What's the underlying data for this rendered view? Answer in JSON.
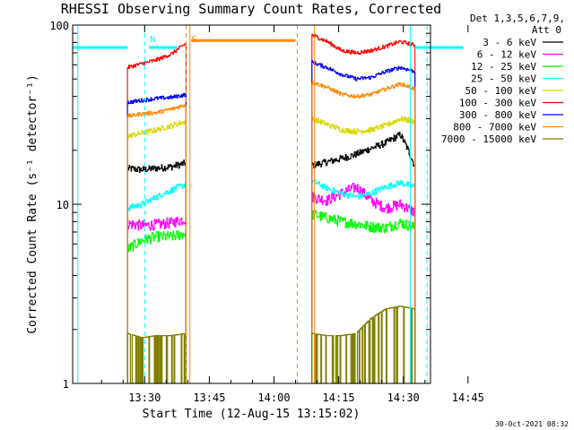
{
  "chart_data": {
    "type": "line",
    "title": "RHESSI Observing Summary Count Rates, Corrected",
    "xlabel": "Start Time (12-Aug-15 13:15:02)",
    "ylabel": "Corrected Count Rate (s⁻¹ detector⁻¹)",
    "yscale": "log",
    "ylim": [
      1,
      100
    ],
    "xlim_minutes": [
      13.3,
      96.3
    ],
    "x_ticks": [
      {
        "t": 30,
        "label": "13:30"
      },
      {
        "t": 45,
        "label": "13:45"
      },
      {
        "t": 60,
        "label": "14:00"
      },
      {
        "t": 75,
        "label": "14:15"
      },
      {
        "t": 90,
        "label": "14:30"
      },
      {
        "t": 105,
        "label": "14:45"
      }
    ],
    "y_ticks": [
      {
        "v": 1,
        "label": "1"
      },
      {
        "v": 10,
        "label": "10"
      },
      {
        "v": 100,
        "label": "100"
      }
    ],
    "legend_header": [
      "Det 1,3,5,6,7,9,",
      "Att 0"
    ],
    "legend_placement": "right",
    "footer_date": "30-Oct-2021 08:32",
    "segments": [
      {
        "start": 26.0,
        "end": 39.6
      },
      {
        "start": 68.8,
        "end": 92.7
      }
    ],
    "series": [
      {
        "name": "3 - 6 keV",
        "color": "#000000",
        "seg1": [
          15.8,
          15.6,
          15.9,
          16.2,
          17.0
        ],
        "seg2": [
          16.5,
          17.2,
          18.0,
          19.0,
          20.5,
          22.0,
          24.5,
          16.0
        ],
        "noise": 0.045
      },
      {
        "name": "6 - 12 keV",
        "color": "#ff00ff",
        "seg1": [
          7.8,
          7.6,
          7.7,
          7.9,
          8.3
        ],
        "seg2": [
          11.0,
          10.5,
          11.5,
          12.5,
          10.5,
          9.5,
          10.0,
          9.0
        ],
        "noise": 0.07
      },
      {
        "name": "12 - 25 keV",
        "color": "#00ff00",
        "seg1": [
          5.6,
          6.3,
          6.6,
          6.6,
          6.9
        ],
        "seg2": [
          8.8,
          8.4,
          8.0,
          7.8,
          7.5,
          7.4,
          7.9,
          7.4
        ],
        "noise": 0.07
      },
      {
        "name": "25 - 50 keV",
        "color": "#00ffff",
        "seg1": [
          9.5,
          10.0,
          11.0,
          12.0,
          13.0
        ],
        "seg2": [
          13.5,
          12.3,
          11.5,
          11.0,
          11.5,
          12.5,
          13.2,
          12.5
        ],
        "noise": 0.04
      },
      {
        "name": "50 - 100 keV",
        "color": "#d8d800",
        "seg1": [
          24.0,
          25.0,
          26.0,
          27.5,
          29.0
        ],
        "seg2": [
          30.0,
          28.0,
          26.0,
          25.5,
          26.0,
          27.5,
          30.0,
          29.0
        ],
        "noise": 0.035
      },
      {
        "name": "100 - 300 keV",
        "color": "#ff0000",
        "seg1": [
          58.0,
          61.0,
          64.0,
          69.0,
          79.0
        ],
        "seg2": [
          88.0,
          81.0,
          72.0,
          70.0,
          72.0,
          76.0,
          81.0,
          77.0
        ],
        "noise": 0.025
      },
      {
        "name": "300 - 800 keV",
        "color": "#0000ff",
        "seg1": [
          37.0,
          38.0,
          39.0,
          39.5,
          41.0
        ],
        "seg2": [
          62.0,
          58.0,
          53.0,
          50.0,
          51.0,
          55.0,
          58.0,
          55.0
        ],
        "noise": 0.025
      },
      {
        "name": "800 - 7000 keV",
        "color": "#ff8800",
        "seg1": [
          31.0,
          32.0,
          32.5,
          34.0,
          36.0
        ],
        "seg2": [
          48.0,
          45.0,
          41.0,
          40.0,
          41.0,
          44.0,
          47.0,
          44.0
        ],
        "noise": 0.025
      },
      {
        "name": "7000 - 15000 keV",
        "color": "#808000",
        "seg1": [
          1.9,
          1.8,
          1.85,
          1.85,
          1.9
        ],
        "seg2": [
          1.9,
          1.85,
          1.85,
          1.9,
          2.3,
          2.6,
          2.7,
          2.6
        ],
        "noise": 0.0
      }
    ],
    "markers": [
      {
        "type": "solid",
        "color": "#00ffff",
        "t": 14.5
      },
      {
        "type": "dashed",
        "color": "#00ffff",
        "t": 30.0,
        "label": "N"
      },
      {
        "type": "solid",
        "color": "#ff8800",
        "t": 40.5
      },
      {
        "type": "dashed",
        "color": "#ff8800",
        "t": 39.6,
        "label": "S"
      },
      {
        "type": "dashed",
        "color": "#ff8800",
        "t": 65.4
      },
      {
        "type": "solid",
        "color": "#ff8800",
        "t": 69.4
      },
      {
        "type": "solid",
        "color": "#00ffff",
        "t": 91.6
      },
      {
        "type": "dashed",
        "color": "#00ffff",
        "t": 95.5
      }
    ],
    "top_bars": [
      {
        "color": "#00ffff",
        "start": 13.3,
        "end": 26.0,
        "level": 75
      },
      {
        "color": "#00ffff",
        "start": 31.0,
        "end": 37.5,
        "level": 75
      },
      {
        "color": "#ff8800",
        "start": 40.8,
        "end": 65.0,
        "level": 82
      },
      {
        "color": "#00ffff",
        "start": 92.7,
        "end": 103.8,
        "level": 75
      }
    ]
  }
}
